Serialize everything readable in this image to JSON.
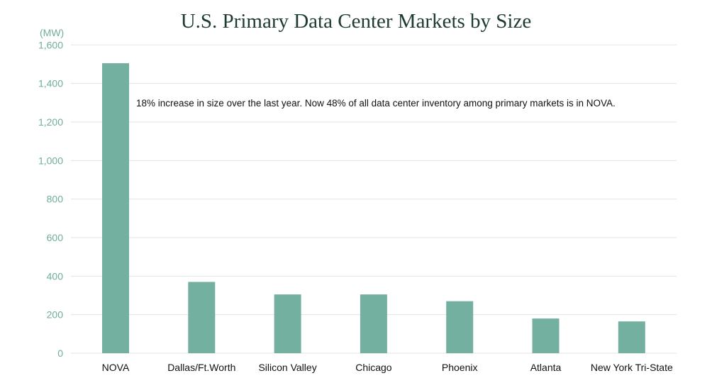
{
  "chart_data": {
    "type": "bar",
    "title": "U.S. Primary Data Center Markets by Size",
    "ylabel": "(MW)",
    "xlabel": "",
    "categories": [
      "NOVA",
      "Dallas/Ft.Worth",
      "Silicon Valley",
      "Chicago",
      "Phoenix",
      "Atlanta",
      "New York Tri-State"
    ],
    "values": [
      1505,
      370,
      305,
      305,
      270,
      180,
      165
    ],
    "ylim": [
      0,
      1600
    ],
    "yticks": [
      0,
      200,
      400,
      600,
      800,
      1000,
      1200,
      1400,
      1600
    ],
    "ytick_labels": [
      "0",
      "200",
      "400",
      "600",
      "800",
      "1,000",
      "1,200",
      "1,400",
      "1,600"
    ],
    "grid": true,
    "annotation": "18% increase in size over the last year. Now 48% of all data center inventory among primary markets is in NOVA.",
    "colors": {
      "bar": "#74b0a0",
      "tick_text": "#6fae9d",
      "grid": "#e3e3e3",
      "title": "#1d3b2e"
    }
  }
}
